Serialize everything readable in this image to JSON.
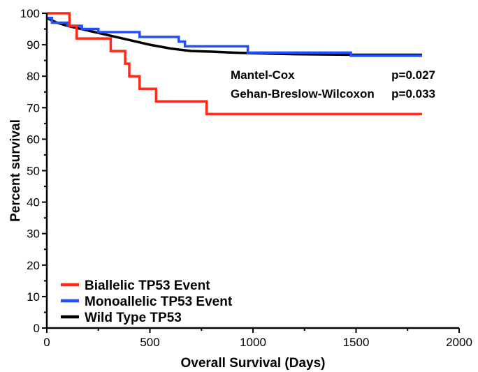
{
  "chart_data": {
    "type": "line",
    "title": "",
    "xlabel": "Overall Survival (Days)",
    "ylabel": "Percent survival",
    "xlim": [
      0,
      2000
    ],
    "ylim": [
      0,
      100
    ],
    "x_ticks": [
      0,
      500,
      1000,
      1500,
      2000
    ],
    "y_ticks": [
      0,
      10,
      20,
      30,
      40,
      50,
      60,
      70,
      80,
      90,
      100
    ],
    "grid": false,
    "legend_position": "bottom-left",
    "series": [
      {
        "name": "Biallelic TP53 Event",
        "color": "#ff2a1a",
        "step": true,
        "x": [
          0,
          110,
          145,
          310,
          380,
          400,
          450,
          530,
          775,
          1820
        ],
        "y": [
          100,
          96,
          92,
          88,
          84,
          80,
          76,
          72,
          68,
          68
        ]
      },
      {
        "name": "Monoallelic TP53 Event",
        "color": "#1f4fff",
        "step": true,
        "x": [
          0,
          25,
          100,
          170,
          250,
          450,
          640,
          670,
          975,
          1475,
          1820
        ],
        "y": [
          98.5,
          97,
          96,
          95,
          94,
          92.5,
          91,
          89.5,
          87.5,
          86.5,
          86.5
        ],
        "visible_to_x": 1820
      },
      {
        "name": "Wild Type TP53",
        "color": "#000000",
        "step": false,
        "x": [
          0,
          50,
          100,
          200,
          300,
          400,
          500,
          600,
          700,
          800,
          900,
          1000,
          1200,
          1500,
          1820
        ],
        "y": [
          98.5,
          97,
          96,
          94.5,
          93,
          91.5,
          90,
          88.8,
          88,
          87.8,
          87.5,
          87.3,
          87,
          86.8,
          86.8
        ]
      }
    ],
    "annotations": [
      {
        "label": "Mantel-Cox",
        "value": "p=0.027"
      },
      {
        "label": "Gehan-Breslow-Wilcoxon",
        "value": "p=0.033"
      }
    ]
  }
}
